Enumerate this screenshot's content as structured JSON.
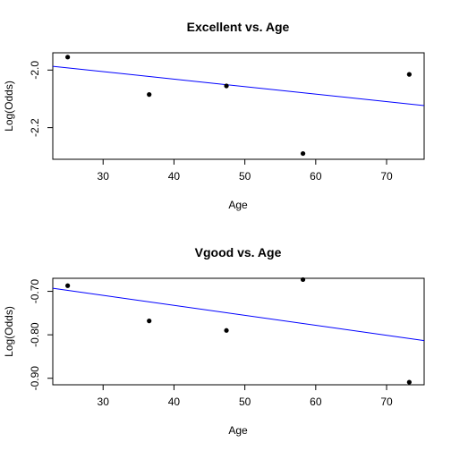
{
  "chart_data": [
    {
      "type": "scatter",
      "title": "Excellent vs. Age",
      "xlabel": "Age",
      "ylabel": "Log(Odds)",
      "xlim": [
        22.9,
        75.3
      ],
      "ylim": [
        -2.31,
        -1.94
      ],
      "xticks": [
        30,
        40,
        50,
        60,
        70
      ],
      "yticks": [
        -2.0,
        -2.2
      ],
      "ytick_labels": [
        "-2.0",
        "-2.2"
      ],
      "points": [
        {
          "x": 25.0,
          "y": -1.955
        },
        {
          "x": 36.5,
          "y": -2.085
        },
        {
          "x": 47.4,
          "y": -2.055
        },
        {
          "x": 58.2,
          "y": -2.29
        },
        {
          "x": 73.2,
          "y": -2.015
        }
      ],
      "fit_line": {
        "intercept": -1.9275,
        "slope": -0.0026,
        "color": "#0000ff"
      },
      "point_color": "#000000",
      "grid": false
    },
    {
      "type": "scatter",
      "title": "Vgood vs. Age",
      "xlabel": "Age",
      "ylabel": "Log(Odds)",
      "xlim": [
        22.9,
        75.3
      ],
      "ylim": [
        -0.915,
        -0.67
      ],
      "xticks": [
        30,
        40,
        50,
        60,
        70
      ],
      "yticks": [
        -0.7,
        -0.8,
        -0.9
      ],
      "ytick_labels": [
        "-0.70",
        "-0.80",
        "-0.90"
      ],
      "points": [
        {
          "x": 25.0,
          "y": -0.687
        },
        {
          "x": 36.5,
          "y": -0.768
        },
        {
          "x": 47.4,
          "y": -0.79
        },
        {
          "x": 58.2,
          "y": -0.673
        },
        {
          "x": 73.2,
          "y": -0.909
        }
      ],
      "fit_line": {
        "intercept": -0.6402,
        "slope": -0.0023,
        "color": "#0000ff"
      },
      "point_color": "#000000",
      "grid": false
    }
  ]
}
